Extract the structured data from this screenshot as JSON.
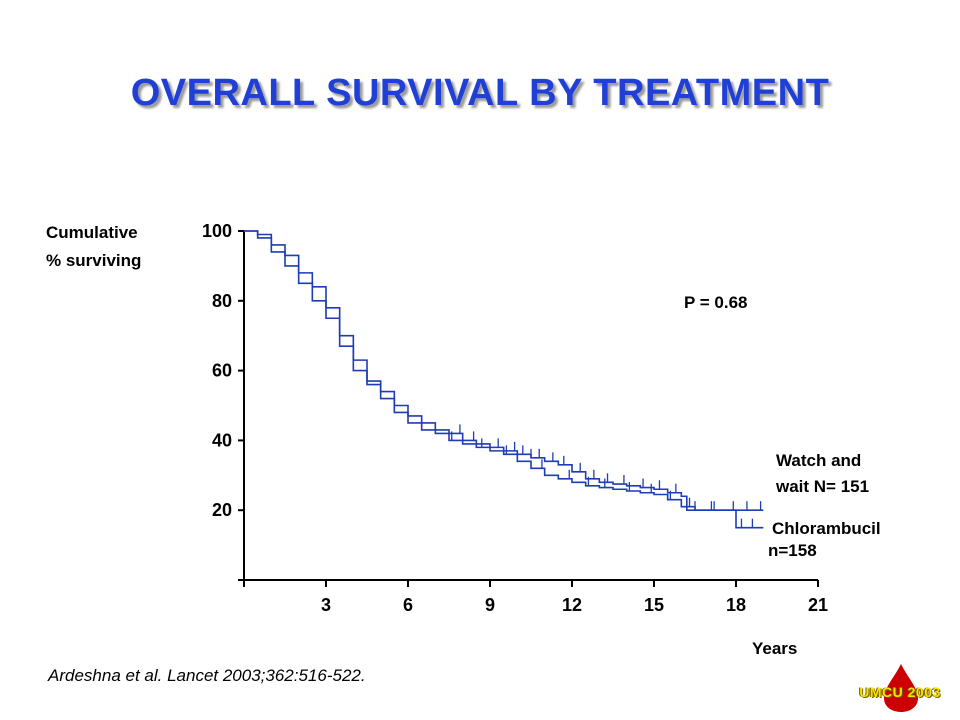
{
  "title": "OVERALL SURVIVAL BY TREATMENT",
  "citation": "Ardeshna et al. Lancet 2003;362:516-522.",
  "logo": {
    "text": "UMCU 2003",
    "drop_color": "#cc0000",
    "text_color": "#f2e600"
  },
  "colors": {
    "title": "#1f3fd6",
    "series": "#1e3cb4",
    "axis": "#000000"
  },
  "chart_data": {
    "type": "line",
    "title": "OVERALL SURVIVAL BY TREATMENT",
    "xlabel": "Years",
    "ylabel_lines": [
      "Cumulative",
      "% surviving"
    ],
    "xlim": [
      0,
      21
    ],
    "ylim": [
      0,
      100
    ],
    "x_ticks": [
      3,
      6,
      9,
      12,
      15,
      18,
      21
    ],
    "y_ticks": [
      20,
      40,
      60,
      80,
      100
    ],
    "grid": false,
    "annotation": "P = 0.68",
    "series": [
      {
        "name": "Watch and wait N= 151",
        "label_lines": [
          "Watch and",
          "wait N= 151"
        ],
        "step": true,
        "points": [
          [
            0,
            100
          ],
          [
            0.5,
            99
          ],
          [
            1,
            96
          ],
          [
            1.5,
            93
          ],
          [
            2,
            88
          ],
          [
            2.5,
            84
          ],
          [
            3,
            78
          ],
          [
            3.5,
            70
          ],
          [
            4,
            63
          ],
          [
            4.5,
            57
          ],
          [
            5,
            54
          ],
          [
            5.5,
            50
          ],
          [
            6,
            47
          ],
          [
            6.5,
            45
          ],
          [
            7,
            43
          ],
          [
            7.5,
            42
          ],
          [
            8,
            40
          ],
          [
            8.5,
            39
          ],
          [
            9,
            38
          ],
          [
            9.5,
            37
          ],
          [
            10,
            36
          ],
          [
            10.5,
            35
          ],
          [
            11,
            34
          ],
          [
            11.5,
            33
          ],
          [
            12,
            31
          ],
          [
            12.5,
            29
          ],
          [
            13,
            28
          ],
          [
            13.5,
            27.5
          ],
          [
            14,
            27
          ],
          [
            14.5,
            26.5
          ],
          [
            15,
            26
          ],
          [
            15.5,
            25
          ],
          [
            16,
            24
          ],
          [
            16.2,
            20
          ],
          [
            17,
            20
          ],
          [
            18,
            20
          ],
          [
            19,
            20
          ]
        ],
        "censor_x": [
          7.9,
          8.4,
          9.3,
          9.9,
          10.2,
          10.5,
          10.8,
          11.3,
          11.7,
          12.3,
          12.8,
          13.3,
          13.9,
          14.6,
          15.2,
          15.8,
          16.5,
          17.2,
          17.9,
          18.4,
          18.9
        ]
      },
      {
        "name": "Chlorambucil n=158",
        "label_lines": [
          "Chlorambucil",
          "n=158"
        ],
        "step": true,
        "points": [
          [
            0,
            100
          ],
          [
            0.5,
            98
          ],
          [
            1,
            94
          ],
          [
            1.5,
            90
          ],
          [
            2,
            85
          ],
          [
            2.5,
            80
          ],
          [
            3,
            75
          ],
          [
            3.5,
            67
          ],
          [
            4,
            60
          ],
          [
            4.5,
            56
          ],
          [
            5,
            52
          ],
          [
            5.5,
            48
          ],
          [
            6,
            45
          ],
          [
            6.5,
            43
          ],
          [
            7,
            42
          ],
          [
            7.5,
            40
          ],
          [
            8,
            39
          ],
          [
            8.5,
            38
          ],
          [
            9,
            37
          ],
          [
            9.5,
            36
          ],
          [
            10,
            34
          ],
          [
            10.5,
            32
          ],
          [
            11,
            30
          ],
          [
            11.5,
            29
          ],
          [
            12,
            28
          ],
          [
            12.5,
            27
          ],
          [
            13,
            26.5
          ],
          [
            13.5,
            26
          ],
          [
            14,
            25.5
          ],
          [
            14.5,
            25
          ],
          [
            15,
            24.5
          ],
          [
            15.5,
            23
          ],
          [
            16,
            21
          ],
          [
            16.5,
            20
          ],
          [
            17,
            20
          ],
          [
            18,
            19
          ],
          [
            18,
            15
          ],
          [
            19,
            15
          ]
        ],
        "censor_x": [
          7.6,
          8.7,
          9.6,
          10.9,
          11.9,
          12.6,
          13.2,
          14.1,
          14.9,
          15.6,
          16.3,
          17.1,
          18.2,
          18.6
        ]
      }
    ]
  }
}
